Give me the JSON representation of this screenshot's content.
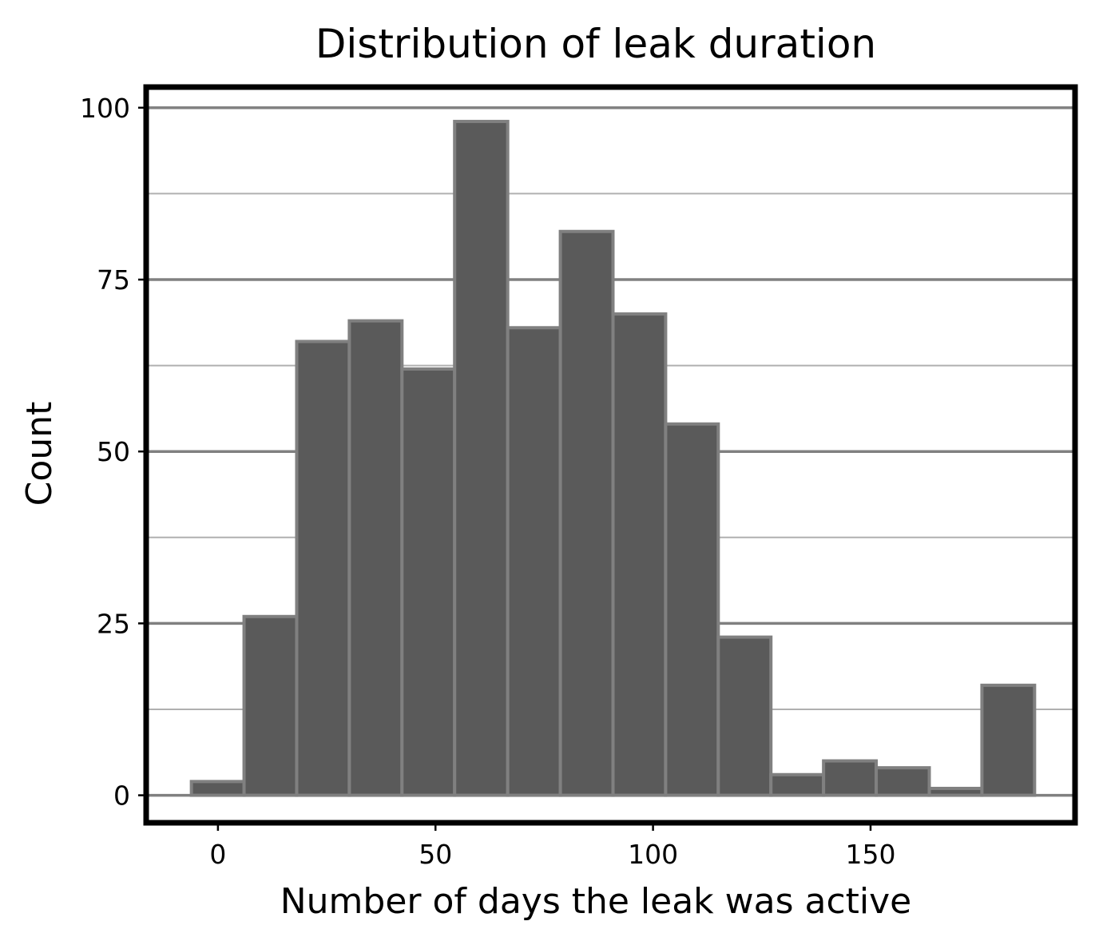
{
  "chart_data": {
    "type": "bar",
    "title": "Distribution of leak duration",
    "xlabel": "Number of days the leak was active",
    "ylabel": "Count",
    "xlim": [
      -16.5,
      197
    ],
    "ylim": [
      -4,
      103
    ],
    "x_ticks": [
      0,
      50,
      100,
      150
    ],
    "y_ticks": [
      0,
      25,
      50,
      75,
      100
    ],
    "y_minor_gridlines": [
      12.5,
      37.5,
      62.5,
      87.5
    ],
    "grid": "horizontal",
    "bins": [
      {
        "start": -6.1,
        "end": 6.0,
        "count": 2
      },
      {
        "start": 6.0,
        "end": 18.1,
        "count": 26
      },
      {
        "start": 18.1,
        "end": 30.2,
        "count": 66
      },
      {
        "start": 30.2,
        "end": 42.3,
        "count": 69
      },
      {
        "start": 42.3,
        "end": 54.4,
        "count": 62
      },
      {
        "start": 54.4,
        "end": 66.6,
        "count": 98
      },
      {
        "start": 66.6,
        "end": 78.7,
        "count": 68
      },
      {
        "start": 78.7,
        "end": 90.8,
        "count": 82
      },
      {
        "start": 90.8,
        "end": 102.9,
        "count": 70
      },
      {
        "start": 102.9,
        "end": 115.0,
        "count": 54
      },
      {
        "start": 115.0,
        "end": 127.1,
        "count": 23
      },
      {
        "start": 127.1,
        "end": 139.2,
        "count": 3
      },
      {
        "start": 139.2,
        "end": 151.3,
        "count": 5
      },
      {
        "start": 151.3,
        "end": 163.5,
        "count": 4
      },
      {
        "start": 163.5,
        "end": 175.6,
        "count": 1
      },
      {
        "start": 175.6,
        "end": 187.7,
        "count": 16
      }
    ],
    "colors": {
      "bar_fill": "#5a5a5a",
      "bar_edge": "#808080",
      "major_grid": "#808080",
      "minor_grid": "#b0b0b0",
      "frame": "#000000"
    }
  }
}
